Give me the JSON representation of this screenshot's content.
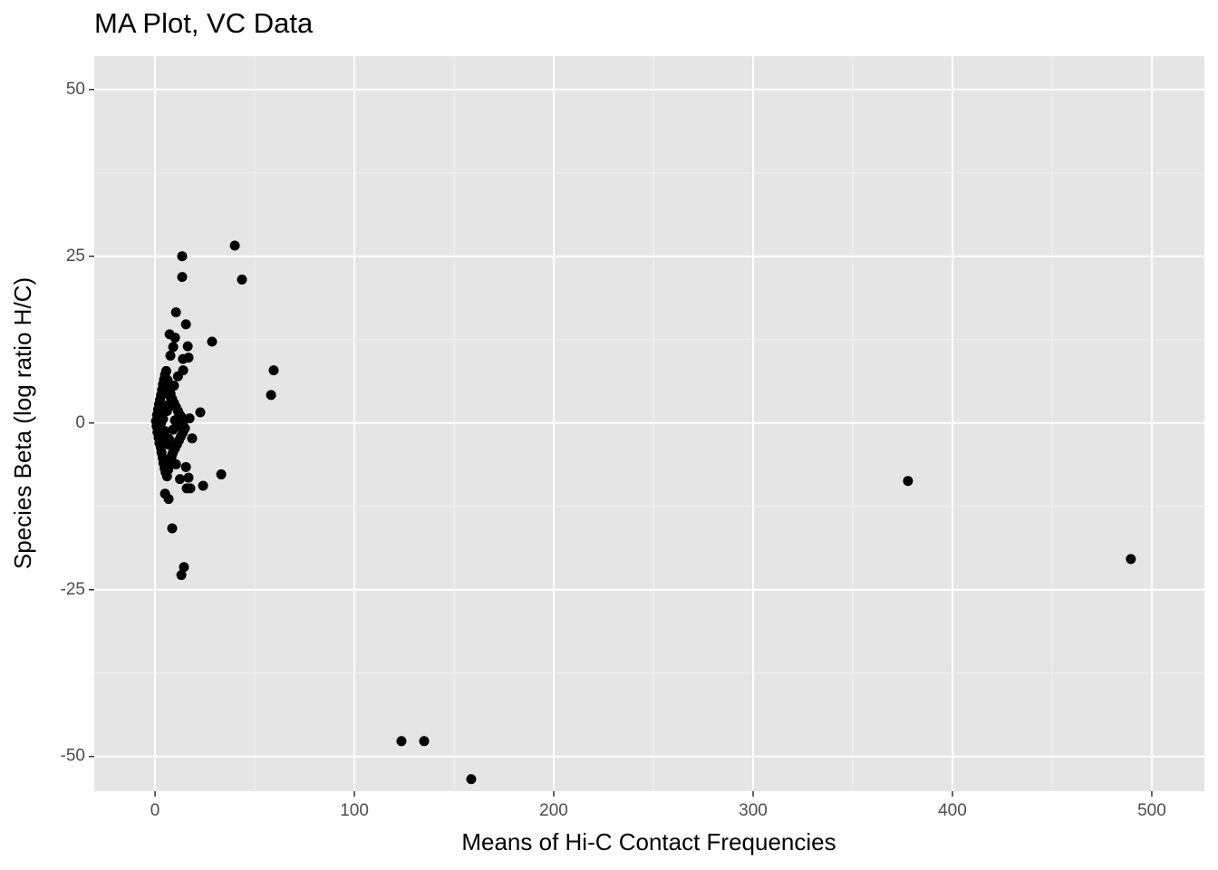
{
  "chart_data": {
    "type": "scatter",
    "title": "MA Plot, VC Data",
    "x_label": "Means of Hi-C Contact Frequencies",
    "y_label": "Species Beta (log ratio H/C)",
    "xlim": [
      -30.5,
      526.4
    ],
    "ylim": [
      -55.2,
      55.0
    ],
    "xticks": [
      0,
      100,
      200,
      300,
      400,
      500
    ],
    "yticks": [
      -50,
      -25,
      0,
      25,
      50
    ],
    "grid": true,
    "minor_grid": true,
    "color": "#000000",
    "x": [
      40,
      43.6,
      13.6,
      13.6,
      10.5,
      15.5,
      28.6,
      16.4,
      59.5,
      58.2,
      22.7,
      33.2,
      24.1,
      377.7,
      489.5,
      8.6,
      14.5,
      13.2,
      123.6,
      135,
      158.6,
      7.3,
      10,
      9.1,
      16.8,
      7.7,
      14.1,
      6.8,
      5,
      17.7,
      15.9,
      16.8,
      18.6,
      17.3,
      0.5,
      0.8,
      1,
      1.2,
      1.5,
      1.8,
      2,
      2.2,
      2.5,
      2.8,
      3,
      3.2,
      3.5,
      3.8,
      4,
      4.2,
      4.5,
      4.8,
      5,
      5.3,
      5.6,
      6,
      6.3,
      6.6,
      7,
      7.4,
      7.8,
      8.2,
      8.6,
      9,
      9.5,
      10,
      10.5,
      11,
      11.5,
      12,
      12.5,
      13,
      13.5,
      14,
      14.5,
      15,
      3,
      4,
      5,
      6,
      7,
      8,
      9,
      10,
      11,
      12,
      13,
      2.5,
      3.5,
      4.5,
      5.5,
      6.5,
      7.5,
      8.5,
      9.5,
      10.5,
      11.5,
      12.5,
      14,
      15.5
    ],
    "values": [
      26.6,
      21.5,
      25,
      21.9,
      16.6,
      14.8,
      12.2,
      11.5,
      7.9,
      4.2,
      1.6,
      -7.7,
      -9.4,
      -8.7,
      -20.4,
      -15.8,
      -21.6,
      -22.8,
      -47.7,
      -47.7,
      -53.4,
      13.3,
      12.8,
      11.4,
      9.8,
      10.1,
      7.9,
      -11.4,
      -10.6,
      -9.8,
      -9.8,
      -8.2,
      -2.3,
      0.7,
      0.3,
      -0.5,
      1.2,
      -1.4,
      2,
      -2.2,
      2.8,
      -3,
      3.5,
      -3.6,
      4.2,
      -4.4,
      5,
      -5.2,
      5.8,
      -6,
      6.5,
      -6.8,
      7.2,
      -7.4,
      7.8,
      -8,
      6.4,
      -7,
      5.2,
      -6.2,
      4.4,
      -5.2,
      3.6,
      -4.4,
      3,
      -3.8,
      2.4,
      -3.2,
      1.8,
      -2.6,
      1.2,
      -2,
      0.8,
      -1.4,
      0.4,
      -0.8,
      0,
      0.6,
      -1.2,
      1.8,
      -2.4,
      3,
      -1,
      0.4,
      -0.2,
      1,
      -0.6,
      -0.3,
      0.9,
      -2,
      2.6,
      -3.2,
      4,
      -4.8,
      5.6,
      -6.2,
      7,
      -8.4,
      9.6,
      -6.6
    ]
  }
}
